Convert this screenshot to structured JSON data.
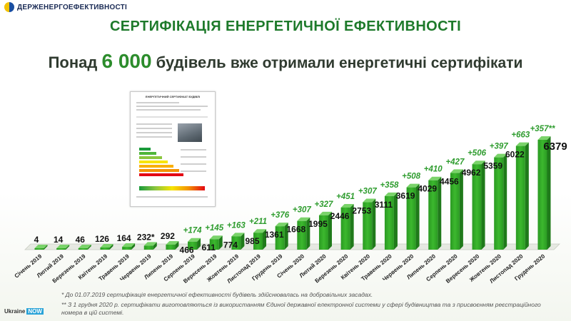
{
  "header": {
    "logo_text": "ДЕРЖЕНЕРГОЕФЕКТИВНОСТІ",
    "title": "СЕРТИФІКАЦІЯ ЕНЕРГЕТИЧНОЇ ЕФЕКТИВНОСТІ",
    "subtitle_prefix": "Понад",
    "subtitle_number": "6 000",
    "subtitle_word": "будівель",
    "subtitle_suffix": "вже отримали енергетичні сертифікати"
  },
  "certificate": {
    "title": "ЕНЕРГЕТИЧНИЙ СЕРТИФІКАТ БУДІВЛІ"
  },
  "chart_data": {
    "type": "bar",
    "categories": [
      "Січень 2019",
      "Лютий 2019",
      "Березень 2019",
      "Квітень 2019",
      "Травень 2019",
      "Червень 2019",
      "Липень 2019",
      "Серпень 2019",
      "Вересень 2019",
      "Жовтень 2019",
      "Листопад 2019",
      "Грудень 2019",
      "Січень 2020",
      "Лютий 2020",
      "Березень 2020",
      "Квітень 2020",
      "Травень 2020",
      "Червень 2020",
      "Липень 2020",
      "Серпень 2020",
      "Вересень 2020",
      "Жовтень 2020",
      "Листопад 2020",
      "Грудень 2020"
    ],
    "values": [
      4,
      14,
      46,
      126,
      164,
      232,
      292,
      466,
      611,
      774,
      985,
      1361,
      1668,
      1995,
      2446,
      2753,
      3111,
      3619,
      4029,
      4456,
      4962,
      5359,
      6022,
      6379
    ],
    "value_labels": [
      "4",
      "14",
      "46",
      "126",
      "164",
      "232*",
      "292",
      "466",
      "611",
      "774",
      "985",
      "1361",
      "1668",
      "1995",
      "2446",
      "2753",
      "3111",
      "3619",
      "4029",
      "4456",
      "4962",
      "5359",
      "6022",
      "6379"
    ],
    "increment_labels": [
      "",
      "",
      "",
      "",
      "",
      "",
      "",
      "+174",
      "+145",
      "+163",
      "+211",
      "+376",
      "+307",
      "+327",
      "+451",
      "+307",
      "+358",
      "+508",
      "+410",
      "+427",
      "+506",
      "+397",
      "+663",
      "+357**"
    ],
    "bar_color": "#3cb82e",
    "increment_color": "#2e9c2e",
    "ylim": [
      0,
      7000
    ]
  },
  "footnotes": {
    "note1": "* До 01.07.2019 сертифікація енергетичної ефективності будівель здійснювалась на добровільних засадах.",
    "note2": "** З 1 грудня 2020 р. сертифікати виготовляються із використанням Єдиної державної електронної системи у сфері будівництва та з присвоєнням реєстраційного номера в цій системі."
  },
  "branding": {
    "ukraine_text": "Ukraine",
    "now_text": "NOW"
  }
}
